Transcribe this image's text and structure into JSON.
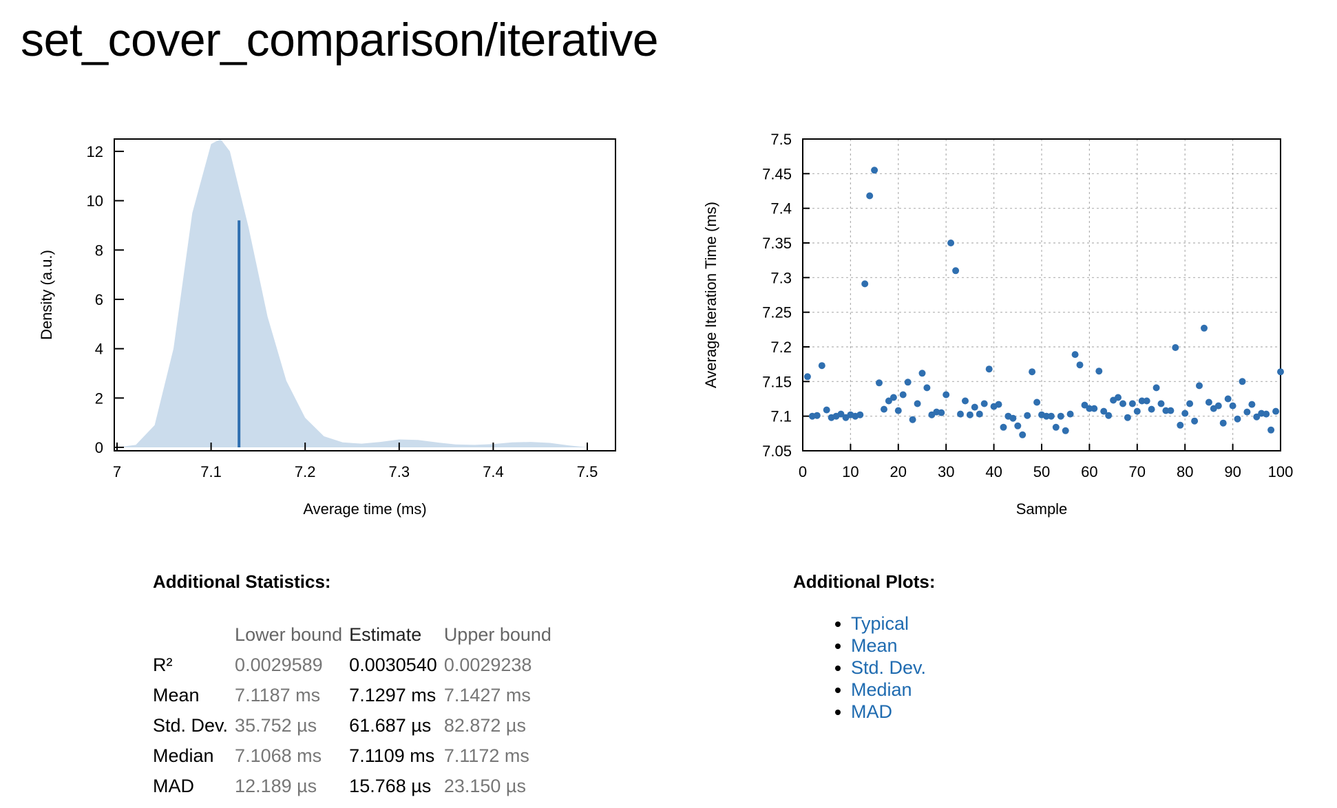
{
  "title": "set_cover_comparison/iterative",
  "chart_data": [
    {
      "type": "area",
      "xlabel": "Average time (ms)",
      "ylabel": "Density (a.u.)",
      "xlim": [
        7.0,
        7.53
      ],
      "ylim": [
        0,
        12.5
      ],
      "xticks": [
        "7",
        "7.1",
        "7.2",
        "7.3",
        "7.4",
        "7.5"
      ],
      "yticks": [
        "0",
        "2",
        "4",
        "6",
        "8",
        "10",
        "12"
      ],
      "fill_color": "#cbdcec",
      "mean_line_color": "#2f6fb0",
      "mean_line": {
        "x": 7.1297,
        "y": 9.2
      },
      "density": {
        "x": [
          7.0,
          7.02,
          7.04,
          7.06,
          7.08,
          7.1,
          7.11,
          7.12,
          7.14,
          7.16,
          7.18,
          7.2,
          7.22,
          7.24,
          7.26,
          7.28,
          7.3,
          7.32,
          7.34,
          7.36,
          7.38,
          7.4,
          7.42,
          7.44,
          7.46,
          7.48,
          7.5
        ],
        "y": [
          0.0,
          0.1,
          0.9,
          4.0,
          9.5,
          12.3,
          12.5,
          12.0,
          8.9,
          5.3,
          2.7,
          1.2,
          0.45,
          0.2,
          0.15,
          0.22,
          0.32,
          0.3,
          0.2,
          0.12,
          0.1,
          0.13,
          0.2,
          0.22,
          0.18,
          0.08,
          0.0
        ]
      }
    },
    {
      "type": "scatter",
      "xlabel": "Sample",
      "ylabel": "Average Iteration Time (ms)",
      "xlim": [
        0,
        100
      ],
      "ylim": [
        7.05,
        7.5
      ],
      "xticks": [
        "0",
        "10",
        "20",
        "30",
        "40",
        "50",
        "60",
        "70",
        "80",
        "90",
        "100"
      ],
      "yticks": [
        "7.05",
        "7.1",
        "7.15",
        "7.2",
        "7.25",
        "7.3",
        "7.35",
        "7.4",
        "7.45",
        "7.5"
      ],
      "grid": true,
      "point_color": "#2f6fb0",
      "x": [
        1,
        2,
        3,
        4,
        5,
        6,
        7,
        8,
        9,
        10,
        11,
        12,
        13,
        14,
        15,
        16,
        17,
        18,
        19,
        20,
        21,
        22,
        23,
        24,
        25,
        26,
        27,
        28,
        29,
        30,
        31,
        32,
        33,
        34,
        35,
        36,
        37,
        38,
        39,
        40,
        41,
        42,
        43,
        44,
        45,
        46,
        47,
        48,
        49,
        50,
        51,
        52,
        53,
        54,
        55,
        56,
        57,
        58,
        59,
        60,
        61,
        62,
        63,
        64,
        65,
        66,
        67,
        68,
        69,
        70,
        71,
        72,
        73,
        74,
        75,
        76,
        77,
        78,
        79,
        80,
        81,
        82,
        83,
        84,
        85,
        86,
        87,
        88,
        89,
        90,
        91,
        92,
        93,
        94,
        95,
        96,
        97,
        98,
        99,
        100
      ],
      "y": [
        7.157,
        7.1,
        7.101,
        7.173,
        7.109,
        7.098,
        7.1,
        7.103,
        7.098,
        7.102,
        7.1,
        7.102,
        7.291,
        7.418,
        7.455,
        7.148,
        7.11,
        7.122,
        7.127,
        7.108,
        7.131,
        7.149,
        7.095,
        7.118,
        7.162,
        7.141,
        7.102,
        7.106,
        7.105,
        7.131,
        7.35,
        7.31,
        7.103,
        7.122,
        7.102,
        7.113,
        7.103,
        7.118,
        7.168,
        7.114,
        7.117,
        7.084,
        7.1,
        7.097,
        7.086,
        7.073,
        7.101,
        7.164,
        7.12,
        7.102,
        7.1,
        7.1,
        7.084,
        7.1,
        7.079,
        7.103,
        7.189,
        7.174,
        7.116,
        7.111,
        7.111,
        7.165,
        7.107,
        7.101,
        7.123,
        7.127,
        7.118,
        7.098,
        7.118,
        7.107,
        7.122,
        7.122,
        7.11,
        7.141,
        7.118,
        7.108,
        7.108,
        7.199,
        7.087,
        7.104,
        7.118,
        7.093,
        7.144,
        7.227,
        7.12,
        7.111,
        7.115,
        7.09,
        7.125,
        7.115,
        7.096,
        7.15,
        7.106,
        7.117,
        7.099,
        7.104,
        7.103,
        7.08,
        7.107,
        7.164
      ]
    }
  ],
  "stats": {
    "heading": "Additional Statistics:",
    "headers": {
      "lower": "Lower bound",
      "estimate": "Estimate",
      "upper": "Upper bound"
    },
    "rows": [
      {
        "label": "R²",
        "lower": "0.0029589",
        "estimate": "0.0030540",
        "upper": "0.0029238"
      },
      {
        "label": "Mean",
        "lower": "7.1187 ms",
        "estimate": "7.1297 ms",
        "upper": "7.1427 ms"
      },
      {
        "label": "Std. Dev.",
        "lower": "35.752 µs",
        "estimate": "61.687 µs",
        "upper": "82.872 µs"
      },
      {
        "label": "Median",
        "lower": "7.1068 ms",
        "estimate": "7.1109 ms",
        "upper": "7.1172 ms"
      },
      {
        "label": "MAD",
        "lower": "12.189 µs",
        "estimate": "15.768 µs",
        "upper": "23.150 µs"
      }
    ]
  },
  "plots": {
    "heading": "Additional Plots:",
    "link_color": "#1f6bb0",
    "links": [
      "Typical",
      "Mean",
      "Std. Dev.",
      "Median",
      "MAD"
    ]
  }
}
